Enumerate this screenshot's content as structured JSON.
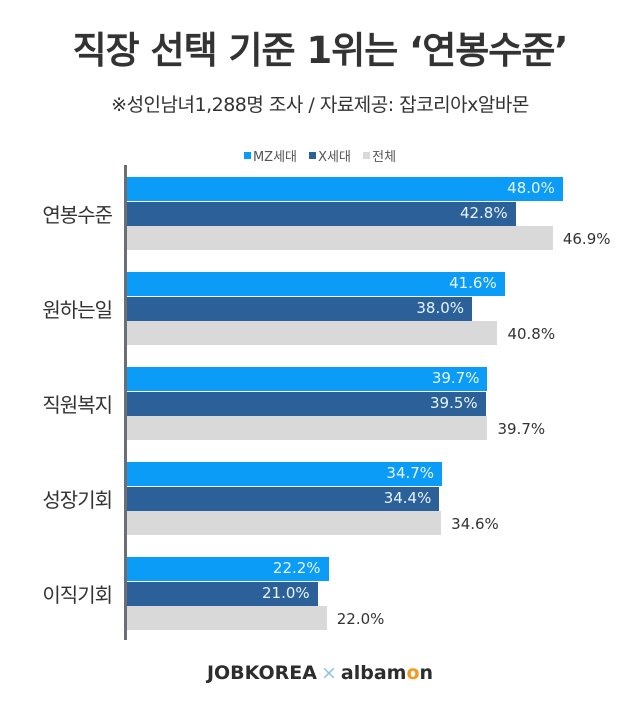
{
  "title": "직장 선택 기준 1위는 ‘연봉수준’",
  "subtitle": "※성인남녀1,288명 조사 / 자료제공: 잡코리아x알바몬",
  "legend": [
    {
      "label": "MZ세대",
      "color": "#0a9cf6"
    },
    {
      "label": "X세대",
      "color": "#2b6198"
    },
    {
      "label": "전체",
      "color": "#d9d9d9"
    }
  ],
  "footer": {
    "brand1": "JOBKOREA",
    "separator": "×",
    "brand2_pre": "albam",
    "brand2_o": "o",
    "brand2_post": "n"
  },
  "groups": [
    {
      "label": "연봉수준",
      "mz": "48.0%",
      "x": "42.8%",
      "total": "46.9%"
    },
    {
      "label": "원하는일",
      "mz": "41.6%",
      "x": "38.0%",
      "total": "40.8%"
    },
    {
      "label": "직원복지",
      "mz": "39.7%",
      "x": "39.5%",
      "total": "39.7%"
    },
    {
      "label": "성장기회",
      "mz": "34.7%",
      "x": "34.4%",
      "total": "34.6%"
    },
    {
      "label": "이직기회",
      "mz": "22.2%",
      "x": "21.0%",
      "total": "22.0%"
    }
  ],
  "chart_data": {
    "type": "bar",
    "orientation": "horizontal",
    "title": "직장 선택 기준 1위는 ‘연봉수준’",
    "subtitle": "※성인남녀1,288명 조사 / 자료제공: 잡코리아x알바몬",
    "categories": [
      "연봉수준",
      "원하는일",
      "직원복지",
      "성장기회",
      "이직기회"
    ],
    "series": [
      {
        "name": "MZ세대",
        "color": "#0a9cf6",
        "values": [
          48.0,
          41.6,
          39.7,
          34.7,
          22.2
        ]
      },
      {
        "name": "X세대",
        "color": "#2b6198",
        "values": [
          42.8,
          38.0,
          39.5,
          34.4,
          21.0
        ]
      },
      {
        "name": "전체",
        "color": "#d9d9d9",
        "values": [
          46.9,
          40.8,
          39.7,
          34.6,
          22.0
        ]
      }
    ],
    "unit": "%",
    "xlabel": "",
    "ylabel": "",
    "legend_position": "top",
    "grid": false
  }
}
